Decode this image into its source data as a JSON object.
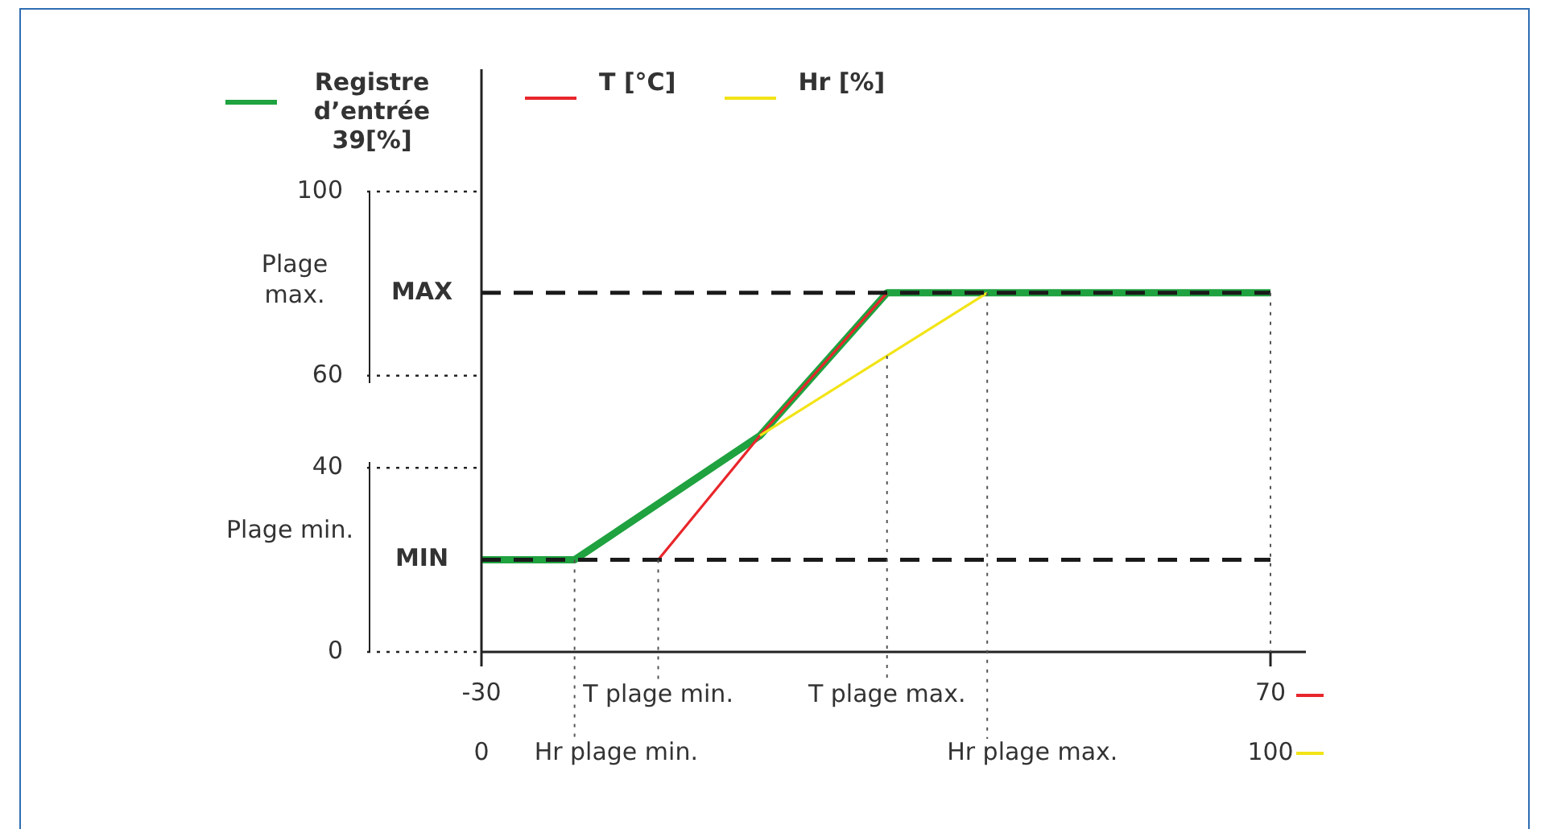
{
  "chart_data": {
    "type": "line",
    "xlim": [
      -30,
      70
    ],
    "xticks": [
      -30,
      70
    ],
    "x2lim": [
      0,
      100
    ],
    "x2ticks": [
      0,
      100
    ],
    "ylim": [
      0,
      100
    ],
    "yticks": [
      0,
      40,
      60,
      100
    ],
    "series": [
      {
        "name": "Registre d’entrée 39[%]",
        "color": "#1fa23f",
        "x": [
          -30,
          -18.2,
          5.3,
          21.4,
          70
        ],
        "values": [
          20,
          20,
          47,
          78,
          78
        ]
      },
      {
        "name": "T [°C]",
        "color": "#e8262b",
        "x": [
          -7.6,
          5.3,
          21.4
        ],
        "values": [
          20,
          47,
          78
        ]
      },
      {
        "name": "Hr [%]",
        "color": "#f2e416",
        "axis": "x2",
        "x": [
          35.3,
          64.1
        ],
        "values": [
          47,
          78
        ]
      }
    ],
    "ref_lines": [
      {
        "axis": "y",
        "value": 20,
        "label": "MIN",
        "line_style": "dashed",
        "color": "#1a1a1a"
      },
      {
        "axis": "y",
        "value": 78,
        "label": "MAX",
        "line_style": "dashed",
        "color": "#1a1a1a"
      },
      {
        "axis": "x",
        "value": -7.6,
        "label": "T plage min.",
        "line_style": "dotted",
        "color": "#555555"
      },
      {
        "axis": "x",
        "value": 21.4,
        "label": "T plage max.",
        "line_style": "dotted",
        "color": "#555555"
      },
      {
        "axis": "x",
        "value": 70,
        "line_style": "dotted",
        "color": "#555555"
      },
      {
        "axis": "x2",
        "value": 11.8,
        "label": "Hr plage min.",
        "line_style": "dotted",
        "color": "#555555"
      },
      {
        "axis": "x2",
        "value": 64.1,
        "label": "Hr plage max.",
        "line_style": "dotted",
        "color": "#555555"
      }
    ],
    "annotations": [
      "Plage max.",
      "Plage min."
    ],
    "grid": false,
    "legend": "top",
    "marker": "none",
    "line_style": "solid"
  }
}
